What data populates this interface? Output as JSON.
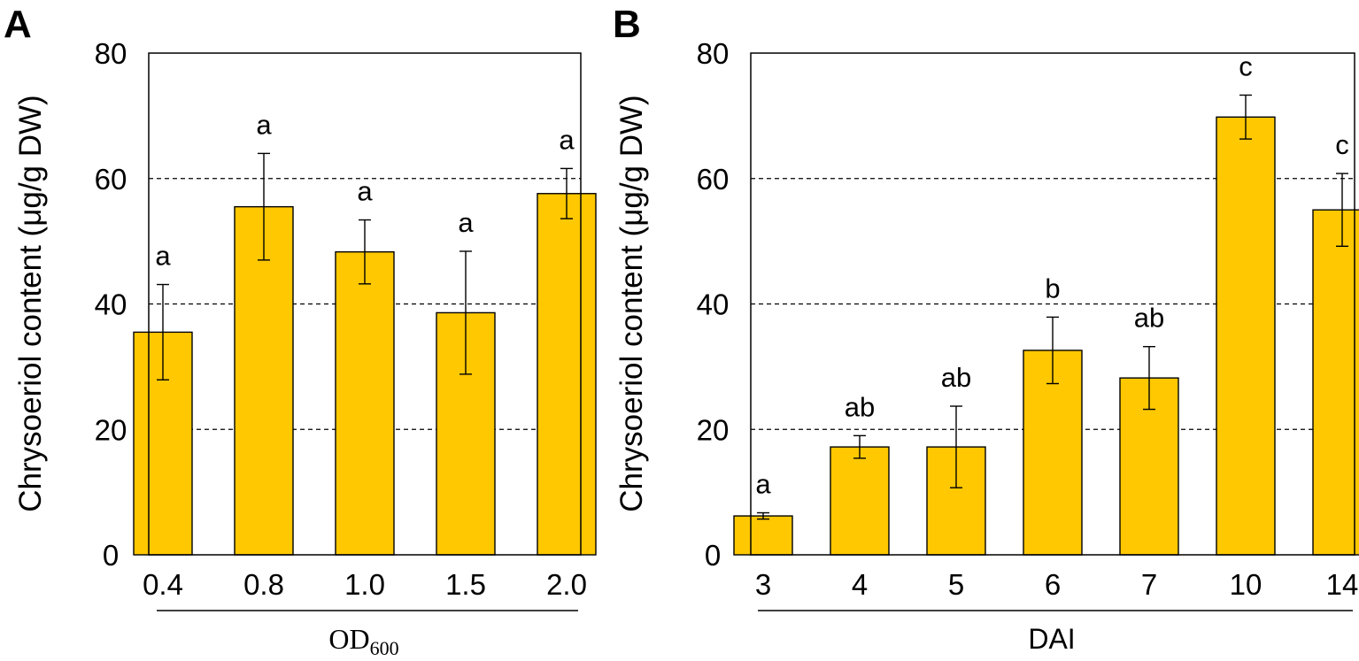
{
  "figure": {
    "bar_color": "#FFC800",
    "bar_edge_color": "#000000",
    "grid_color": "#000000"
  },
  "chart_data": [
    {
      "panel_label": "A",
      "type": "bar",
      "title": "",
      "ylabel": "Chrysoeriol content (μg/g DW)",
      "xlabel": "OD",
      "xlabel_subscript": "600",
      "ylim": [
        0,
        80
      ],
      "yticks": [
        "0",
        "20",
        "40",
        "60",
        "80"
      ],
      "grid_y": [
        20,
        40,
        60
      ],
      "categories": [
        "0.4",
        "0.8",
        "1.0",
        "1.5",
        "2.0"
      ],
      "values": [
        35.5,
        55.5,
        48.3,
        38.6,
        57.6
      ],
      "errors": [
        7.6,
        8.5,
        5.1,
        9.8,
        4.0
      ],
      "significance": [
        "a",
        "a",
        "a",
        "a",
        "a"
      ]
    },
    {
      "panel_label": "B",
      "type": "bar",
      "title": "",
      "ylabel": "Chrysoeriol content (μg/g DW)",
      "xlabel": "DAI",
      "ylim": [
        0,
        80
      ],
      "yticks": [
        "0",
        "20",
        "40",
        "60",
        "80"
      ],
      "grid_y": [
        20,
        40,
        60
      ],
      "categories": [
        "3",
        "4",
        "5",
        "6",
        "7",
        "10",
        "14"
      ],
      "values": [
        6.2,
        17.2,
        17.2,
        32.6,
        28.2,
        69.8,
        55.0
      ],
      "errors": [
        0.5,
        1.8,
        6.5,
        5.3,
        5.0,
        3.5,
        5.8
      ],
      "significance": [
        "a",
        "ab",
        "ab",
        "b",
        "ab",
        "c",
        "c"
      ]
    }
  ]
}
